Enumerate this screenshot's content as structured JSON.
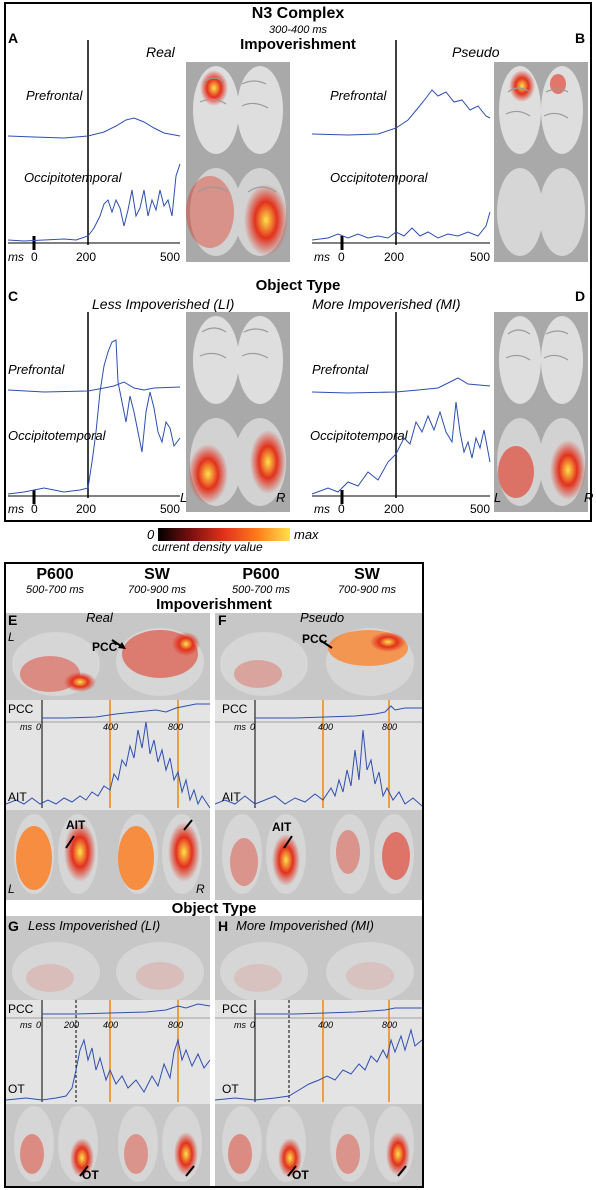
{
  "top": {
    "title": "N3 Complex",
    "window": "300-400 ms",
    "section1": "Impoverishment",
    "section2": "Object Type",
    "panels": [
      {
        "letter": "A",
        "condition": "Real"
      },
      {
        "letter": "B",
        "condition": "Pseudo"
      },
      {
        "letter": "C",
        "condition": "Less Impoverished (LI)"
      },
      {
        "letter": "D",
        "condition": "More Impoverished (MI)"
      }
    ],
    "trace_labels": {
      "prefrontal": "Prefrontal",
      "occipitotemporal": "Occipitotemporal"
    },
    "axis": {
      "unit": "ms",
      "ticks": [
        "0",
        "200",
        "500"
      ]
    },
    "hemi": {
      "left": "L",
      "right": "R"
    }
  },
  "colorbar": {
    "min": "0",
    "max": "max",
    "label": "current density value",
    "colors": [
      "#000000",
      "#7a1010",
      "#e2311d",
      "#ff7a1a",
      "#ffe24a"
    ]
  },
  "bottom": {
    "headers": [
      {
        "name": "P600",
        "window": "500-700 ms"
      },
      {
        "name": "SW",
        "window": "700-900 ms"
      },
      {
        "name": "P600",
        "window": "500-700 ms"
      },
      {
        "name": "SW",
        "window": "700-900 ms"
      }
    ],
    "section1": "Impoverishment",
    "section2": "Object Type",
    "panels": [
      {
        "letter": "E",
        "condition": "Real"
      },
      {
        "letter": "F",
        "condition": "Pseudo"
      },
      {
        "letter": "G",
        "condition": "Less Impoverished (LI)"
      },
      {
        "letter": "H",
        "condition": "More Impoverished (MI)"
      }
    ],
    "trace_labels": {
      "pcc": "PCC",
      "ait": "AIT",
      "ot": "OT"
    },
    "axis": {
      "unit": "ms",
      "ticks": [
        "0",
        "200",
        "400",
        "800"
      ]
    },
    "arrow_labels": {
      "pcc": "PCC",
      "ait": "AIT",
      "ot": "OT"
    },
    "hemi": {
      "left": "L",
      "right": "R"
    }
  }
}
